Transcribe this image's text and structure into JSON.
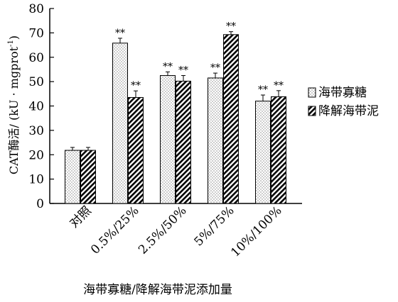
{
  "chart_data": {
    "type": "bar",
    "title": "",
    "xlabel": "海带寡糖/降解海带泥添加量",
    "ylabel": "CAT酶活/ (kU · mgprot⁻¹)",
    "ylabel_main": "CAT酶活/ (kU · mgprot",
    "ylabel_sup": "-1",
    "ylabel_close": ")",
    "ylim": [
      0,
      80
    ],
    "yticks": [
      "0",
      "10",
      "20",
      "30",
      "40",
      "50",
      "60",
      "70",
      "80"
    ],
    "categories": [
      "对照",
      "0.5%/25%",
      "2.5%/50%",
      "5%/75%",
      "10%/100%"
    ],
    "legend_position": "right",
    "grid": false,
    "series": [
      {
        "name": "海带寡糖",
        "pattern": "dots",
        "values": [
          21.8,
          65.8,
          52.5,
          51.5,
          42.0
        ],
        "errors": [
          1.2,
          2.0,
          1.5,
          2.0,
          2.5
        ],
        "labels": [
          "",
          "**",
          "**",
          "**",
          "**"
        ]
      },
      {
        "name": "降解海带泥",
        "pattern": "diagonal",
        "values": [
          21.8,
          43.5,
          50.2,
          69.3,
          43.8
        ],
        "errors": [
          1.2,
          2.7,
          2.3,
          1.2,
          2.5
        ],
        "labels": [
          "",
          "**",
          "**",
          "**",
          "**"
        ]
      }
    ]
  }
}
